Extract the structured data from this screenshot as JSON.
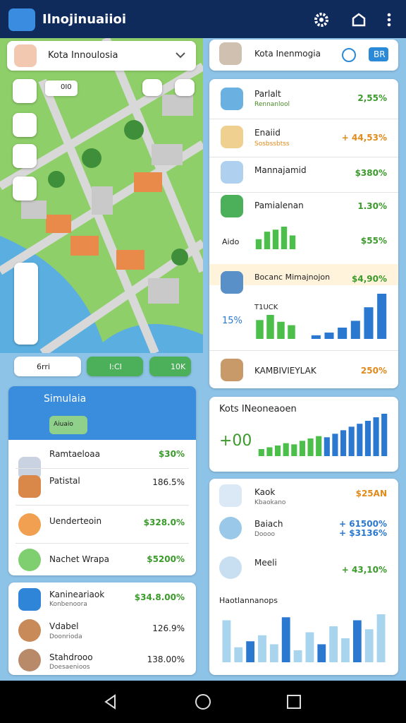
{
  "header": {
    "title": "Ilnojinuaiioi"
  },
  "map": {
    "search": "Kota Innoulosia",
    "chip": "0I0",
    "bottom_chips": [
      "6rri",
      "I:CI",
      "10K"
    ]
  },
  "simulation": {
    "title": "Simulaia",
    "chip": "Aiuaio",
    "items": [
      {
        "name": "Ramtaeloaa",
        "value": "$30%"
      },
      {
        "name": "Patistal",
        "value": "186.5%"
      },
      {
        "name": "Uenderteoin",
        "value": "$328.0%"
      },
      {
        "name": "Nachet Wrapa",
        "value": "$5200%"
      }
    ]
  },
  "people": {
    "items": [
      {
        "name": "Kanineariaok",
        "sub": "Konbenoora",
        "value": "$34.8.00%"
      },
      {
        "name": "Vdabel",
        "sub": "Doonrioda",
        "value": "126.9%"
      },
      {
        "name": "Stahdrooo",
        "sub": "Doesaenioos",
        "value": "138.00%"
      }
    ]
  },
  "top_card": {
    "title": "Kota Inenmogia",
    "badge": "BR"
  },
  "stats": {
    "items": [
      {
        "name": "Parlalt",
        "sub": "Rennanlool",
        "value": "2,55%"
      },
      {
        "name": "Enaiid",
        "sub": "Sosbssbtss",
        "value": "+ 44,53%"
      },
      {
        "name": "Mannajamid",
        "value": "$380%"
      },
      {
        "name": "Pamialenan",
        "value": "1.30%"
      }
    ],
    "aido": {
      "label": "Aido",
      "value": "$55%",
      "bars": [
        40,
        70,
        78,
        90,
        55
      ]
    },
    "bocanc": {
      "name": "Bocanc Mimajnojon",
      "value": "$4,90%",
      "side": "15%",
      "tag": "T1UCK",
      "green": [
        55,
        70,
        50,
        40
      ],
      "blue": [
        8,
        14,
        25,
        40,
        70,
        100
      ]
    },
    "footer": {
      "name": "KAMBIVIEYLAK",
      "value": "250%"
    }
  },
  "trend": {
    "title": "Kots INeoneaoen",
    "value": "+00",
    "bars": [
      12,
      15,
      18,
      22,
      20,
      26,
      30,
      34,
      32,
      38,
      44,
      50,
      55,
      60,
      66,
      72
    ]
  },
  "finance": {
    "items": [
      {
        "name": "Kaok",
        "sub": "Kbaokano",
        "value": "$25AN"
      },
      {
        "name": "Baiach",
        "sub": "Doooo",
        "value": "+ 61500%",
        "value2": "+ $3136%"
      },
      {
        "name": "Meeli",
        "value": "+ 43,10%"
      }
    ],
    "chart_title": "Haotlannanops",
    "bars": [
      70,
      25,
      35,
      45,
      30,
      75,
      20,
      50,
      30,
      60,
      40,
      70,
      55,
      80
    ]
  }
}
